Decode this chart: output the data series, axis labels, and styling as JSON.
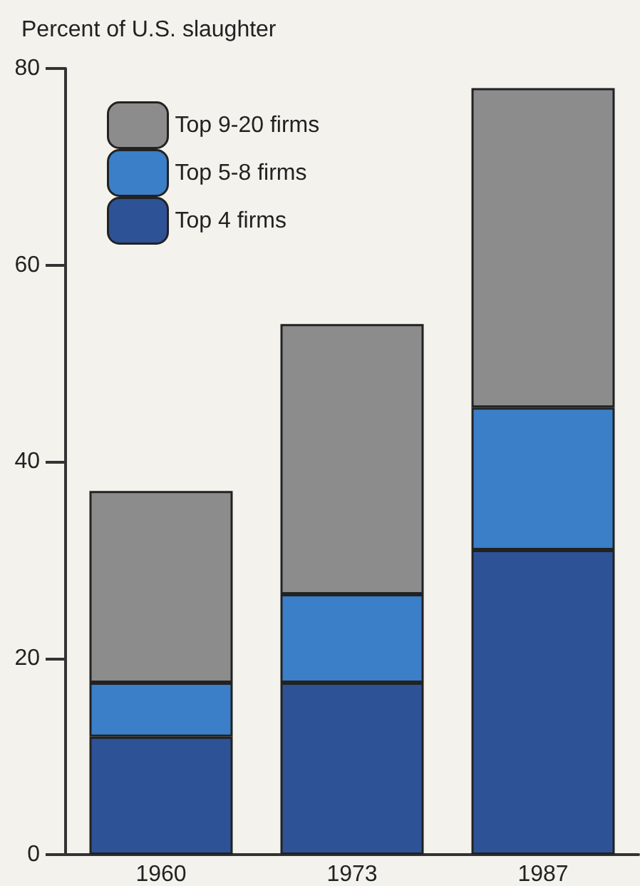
{
  "chart_data": {
    "type": "bar",
    "ylabel": "Percent of U.S. slaughter",
    "categories": [
      "1960",
      "1973",
      "1987"
    ],
    "series": [
      {
        "name": "Top 4 firms",
        "color": "#2e5296",
        "values": [
          12,
          17.5,
          31
        ]
      },
      {
        "name": "Top 5-8 firms",
        "color": "#3a7fc8",
        "values": [
          5.5,
          9,
          14.5
        ]
      },
      {
        "name": "Top 9-20 firms",
        "color": "#8c8c8c",
        "values": [
          19.5,
          27.5,
          32.5
        ]
      }
    ],
    "stacked": true,
    "ylim": [
      0,
      80
    ],
    "yticks": [
      0,
      20,
      40,
      60,
      80
    ],
    "grid": false,
    "legend": "top left"
  }
}
